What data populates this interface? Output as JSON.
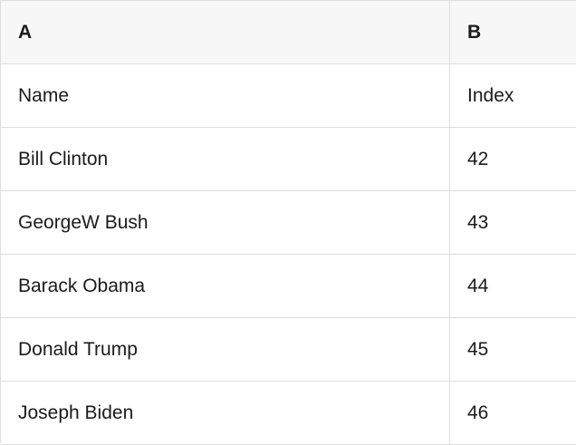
{
  "table": {
    "header": {
      "col_a": "A",
      "col_b": "B"
    },
    "rows": [
      {
        "a": "Name",
        "b": "Index"
      },
      {
        "a": "Bill Clinton",
        "b": "42"
      },
      {
        "a": "GeorgeW Bush",
        "b": "43"
      },
      {
        "a": "Barack Obama",
        "b": "44"
      },
      {
        "a": "Donald Trump",
        "b": "45"
      },
      {
        "a": "Joseph Biden",
        "b": "46"
      }
    ]
  },
  "colors": {
    "header_background": "#f7f7f7",
    "border": "#dedede",
    "text": "#1b1b1b",
    "cell_background": "#ffffff"
  }
}
